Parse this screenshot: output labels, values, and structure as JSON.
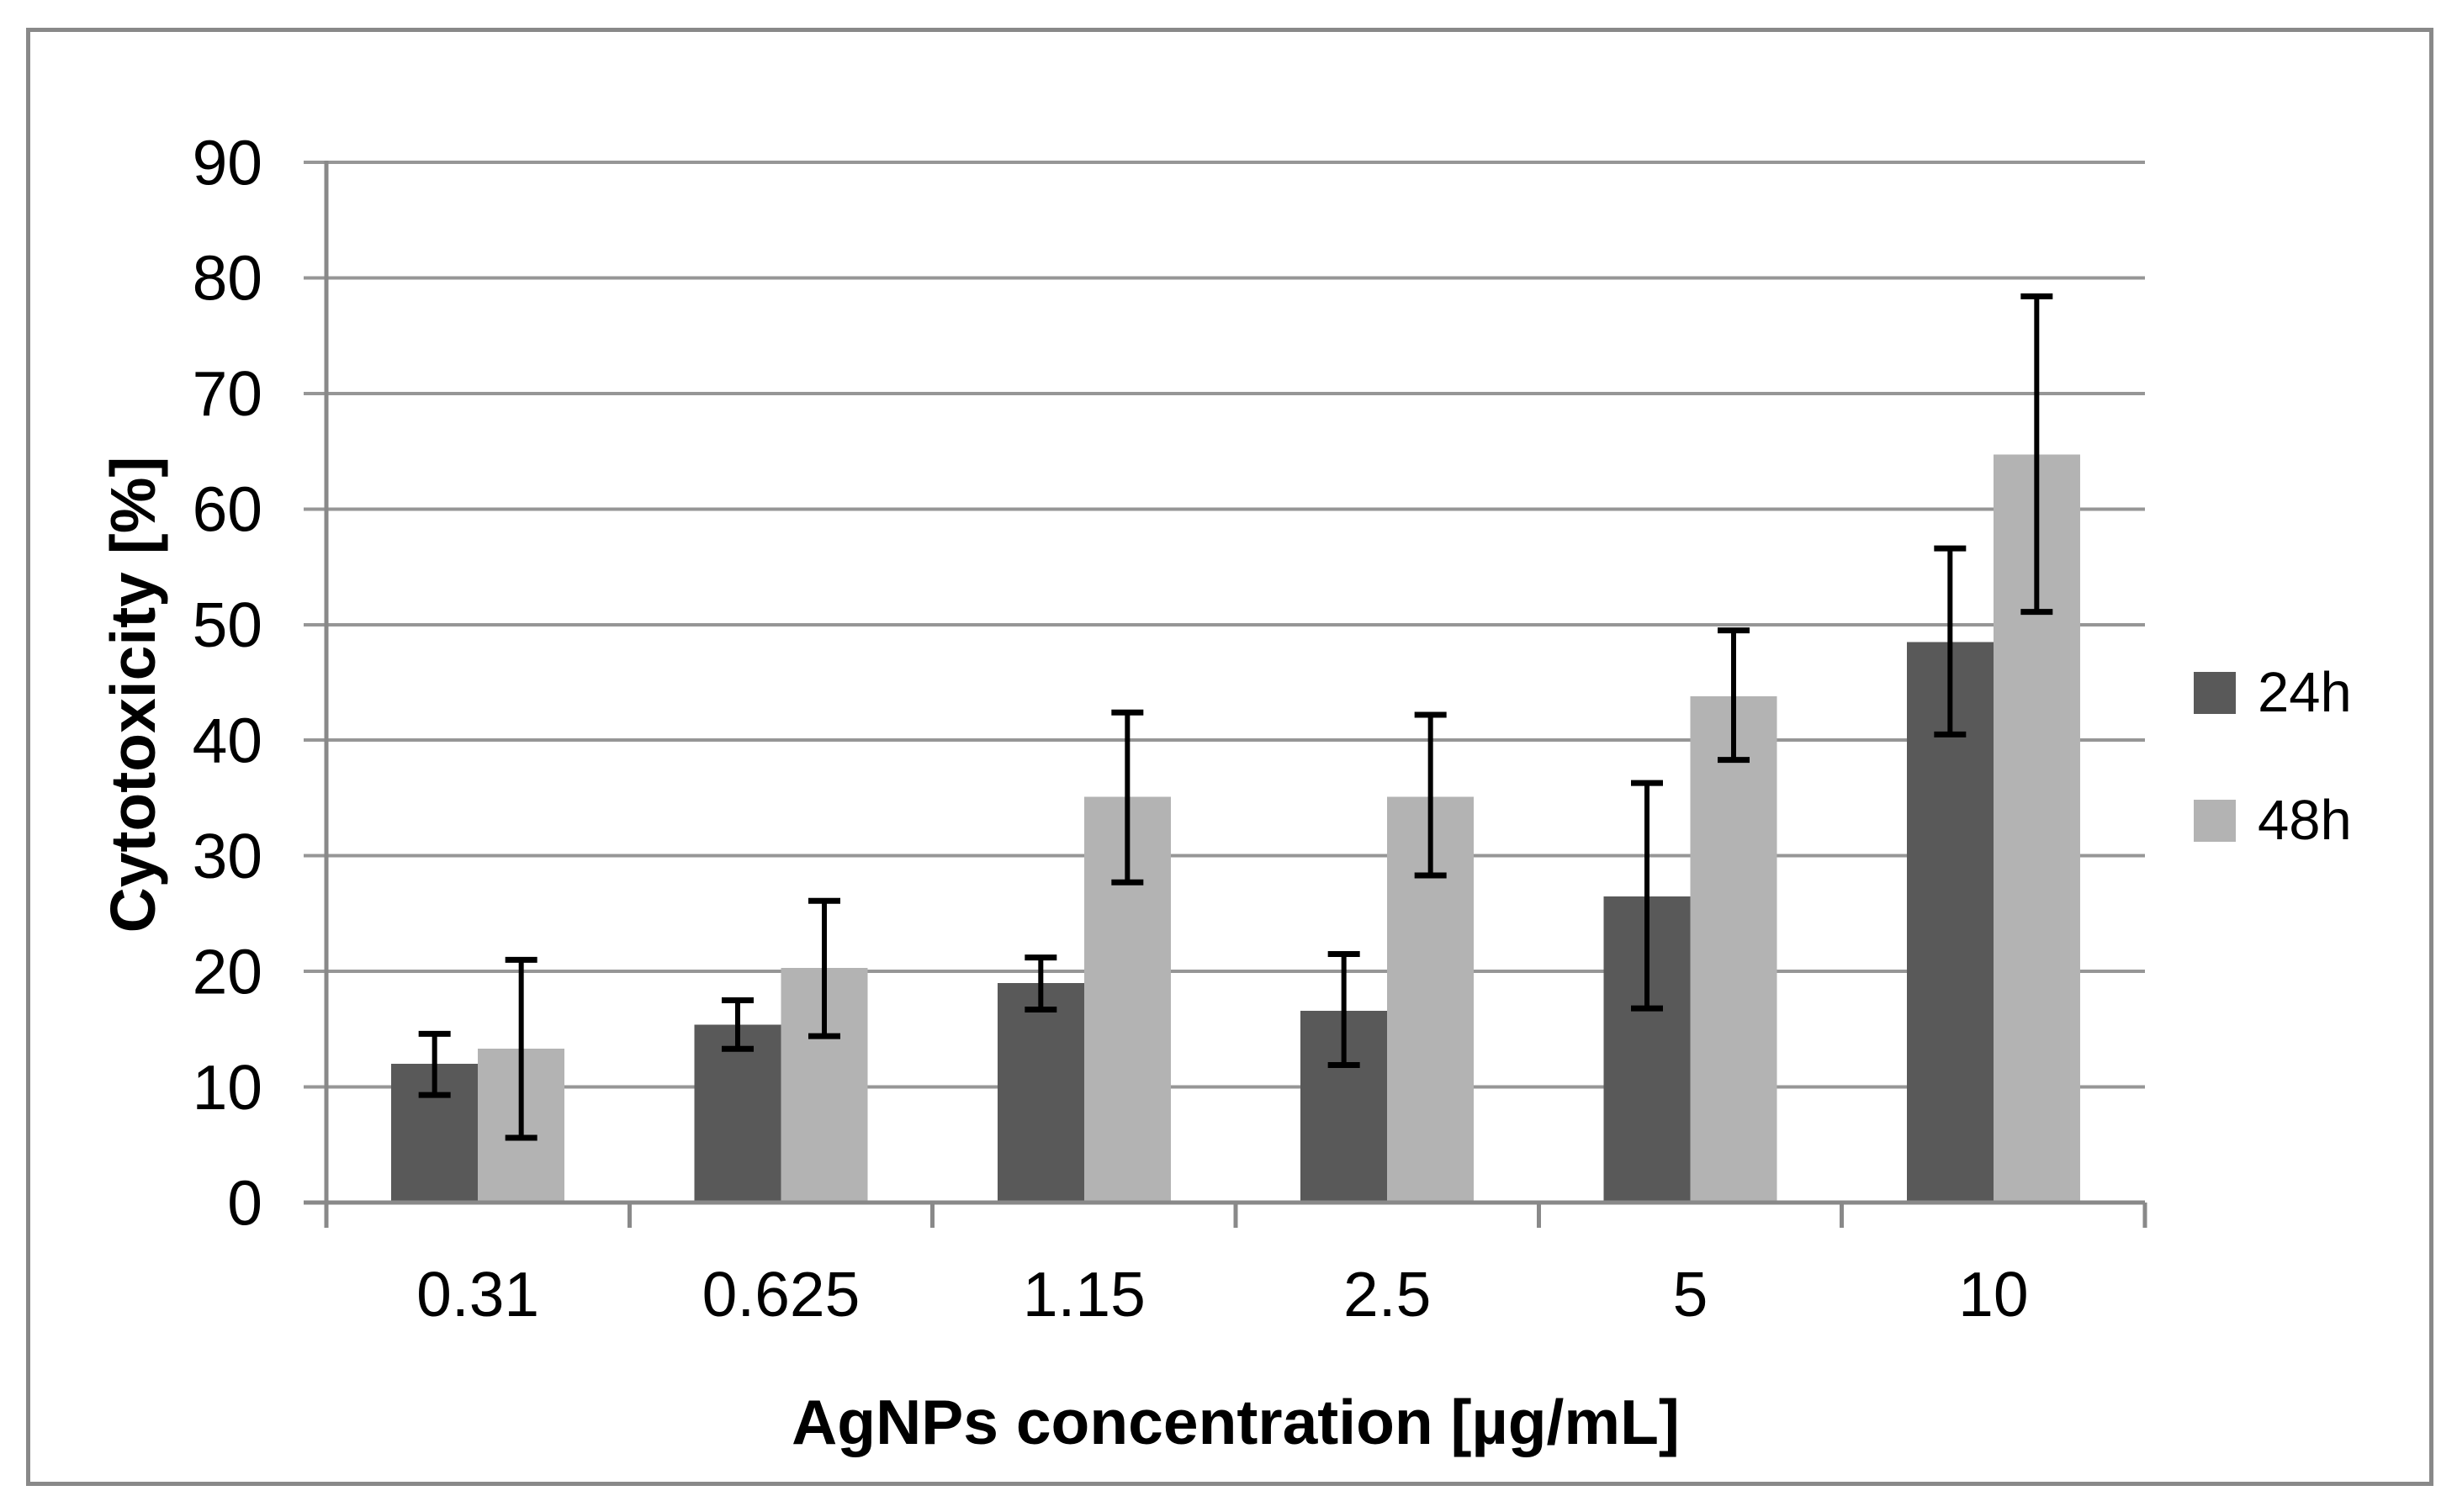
{
  "figure": {
    "background": "#ffffff",
    "border_color": "#898989"
  },
  "chart_data": {
    "type": "bar",
    "title": "",
    "xlabel": "AgNPs concentration [µg/mL]",
    "ylabel": "Cytotoxicity [%]",
    "categories": [
      "0.31",
      "0.625",
      "1.15",
      "2.5",
      "5",
      "10"
    ],
    "series": [
      {
        "name": "24h",
        "color": "#595959",
        "values": [
          12.0,
          15.4,
          19.0,
          16.6,
          26.5,
          48.5
        ],
        "error_up": [
          2.6,
          2.1,
          2.2,
          4.9,
          9.8,
          8.1
        ],
        "error_down": [
          2.7,
          2.1,
          2.3,
          4.7,
          9.7,
          8.0
        ]
      },
      {
        "name": "48h",
        "color": "#b3b3b3",
        "values": [
          13.3,
          20.3,
          35.1,
          35.1,
          43.8,
          64.7
        ],
        "error_up": [
          7.7,
          5.8,
          7.3,
          7.1,
          5.7,
          13.7
        ],
        "error_down": [
          7.7,
          5.9,
          7.4,
          6.8,
          5.5,
          13.6
        ]
      }
    ],
    "ylim": [
      0,
      90
    ],
    "ytick_step": 10,
    "y_tick_labels": [
      "0",
      "10",
      "20",
      "30",
      "40",
      "50",
      "60",
      "70",
      "80",
      "90"
    ],
    "grid": true,
    "legend_position": "right",
    "colors": {
      "gridline": "#969696",
      "axis": "#898989",
      "error_bar": "#000000",
      "text": "#000000"
    }
  }
}
